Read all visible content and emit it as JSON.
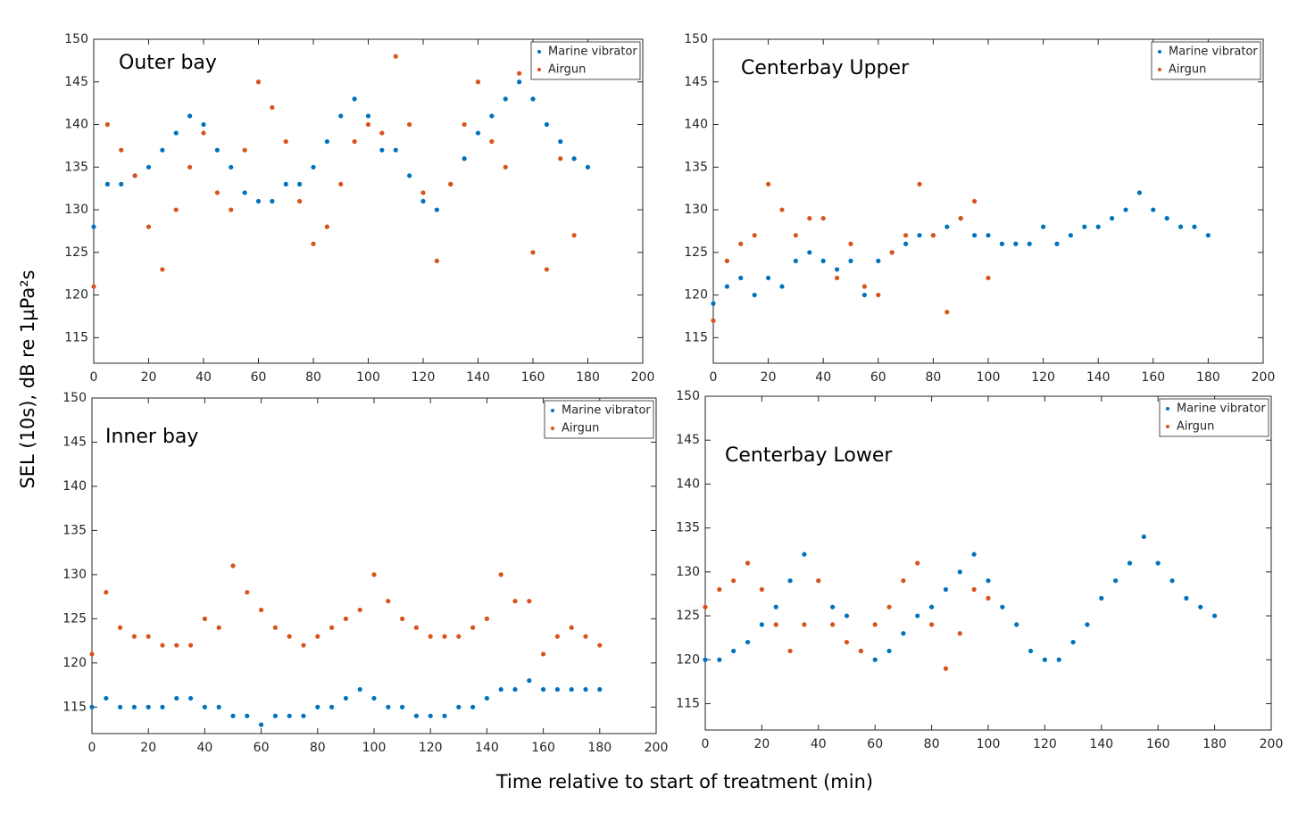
{
  "ylabel": "SEL (10s), dB re 1µPa²s",
  "xlabel": "Time relative to start of treatment (min)",
  "chart_data": [
    {
      "type": "scatter",
      "title": "Outer bay",
      "legend": "top-right",
      "xlim": [
        0,
        200
      ],
      "xticks": [
        0,
        20,
        40,
        60,
        80,
        100,
        120,
        140,
        160,
        180,
        200
      ],
      "ylim": [
        112,
        150
      ],
      "yticks": [
        115,
        120,
        125,
        130,
        135,
        140,
        145,
        150
      ],
      "series": [
        {
          "name": "Marine vibrator",
          "color": "#0072bd",
          "x": [
            0,
            5,
            10,
            15,
            20,
            25,
            30,
            35,
            40,
            45,
            50,
            55,
            60,
            65,
            70,
            75,
            80,
            85,
            90,
            95,
            100,
            105,
            110,
            115,
            120,
            125,
            130,
            135,
            140,
            145,
            150,
            155,
            160,
            165,
            170,
            175,
            180
          ],
          "values": [
            128,
            133,
            133,
            134,
            135,
            137,
            139,
            141,
            140,
            137,
            135,
            132,
            131,
            131,
            133,
            133,
            135,
            138,
            141,
            143,
            141,
            137,
            137,
            134,
            131,
            130,
            133,
            136,
            139,
            141,
            143,
            145,
            143,
            140,
            138,
            136,
            135
          ]
        },
        {
          "name": "Airgun",
          "color": "#d95319",
          "x": [
            0,
            5,
            10,
            15,
            20,
            25,
            30,
            35,
            40,
            45,
            50,
            55,
            60,
            65,
            70,
            75,
            80,
            85,
            90,
            95,
            100,
            105,
            110,
            115,
            120,
            125,
            130,
            135,
            140,
            145,
            150,
            155,
            160,
            165,
            170,
            175
          ],
          "values": [
            121,
            140,
            137,
            134,
            128,
            123,
            130,
            135,
            139,
            132,
            130,
            137,
            145,
            142,
            138,
            131,
            126,
            128,
            133,
            138,
            140,
            139,
            148,
            140,
            132,
            124,
            133,
            140,
            145,
            138,
            135,
            146,
            125,
            123,
            136,
            127
          ]
        }
      ]
    },
    {
      "type": "scatter",
      "title": "Centerbay Upper",
      "legend": "top-right",
      "xlim": [
        0,
        200
      ],
      "xticks": [
        0,
        20,
        40,
        60,
        80,
        100,
        120,
        140,
        160,
        180,
        200
      ],
      "ylim": [
        112,
        150
      ],
      "yticks": [
        115,
        120,
        125,
        130,
        135,
        140,
        145,
        150
      ],
      "series": [
        {
          "name": "Marine vibrator",
          "color": "#0072bd",
          "x": [
            0,
            5,
            10,
            15,
            20,
            25,
            30,
            35,
            40,
            45,
            50,
            55,
            60,
            65,
            70,
            75,
            80,
            85,
            90,
            95,
            100,
            105,
            110,
            115,
            120,
            125,
            130,
            135,
            140,
            145,
            150,
            155,
            160,
            165,
            170,
            175,
            180
          ],
          "values": [
            119,
            121,
            122,
            120,
            122,
            121,
            124,
            125,
            124,
            123,
            124,
            120,
            124,
            125,
            126,
            127,
            127,
            128,
            129,
            127,
            127,
            126,
            126,
            126,
            128,
            126,
            127,
            128,
            128,
            129,
            130,
            132,
            130,
            129,
            128,
            128,
            127
          ]
        },
        {
          "name": "Airgun",
          "color": "#d95319",
          "x": [
            0,
            5,
            10,
            15,
            20,
            25,
            30,
            35,
            40,
            45,
            50,
            55,
            60,
            65,
            70,
            75,
            80,
            85,
            90,
            95,
            100
          ],
          "values": [
            117,
            124,
            126,
            127,
            133,
            130,
            127,
            129,
            129,
            122,
            126,
            121,
            120,
            125,
            127,
            133,
            127,
            118,
            129,
            131,
            122
          ]
        }
      ]
    },
    {
      "type": "scatter",
      "title": "Inner bay",
      "legend": "top-right",
      "xlim": [
        0,
        200
      ],
      "xticks": [
        0,
        20,
        40,
        60,
        80,
        100,
        120,
        140,
        160,
        180,
        200
      ],
      "ylim": [
        112,
        150
      ],
      "yticks": [
        115,
        120,
        125,
        130,
        135,
        140,
        145,
        150
      ],
      "series": [
        {
          "name": "Marine vibrator",
          "color": "#0072bd",
          "x": [
            0,
            5,
            10,
            15,
            20,
            25,
            30,
            35,
            40,
            45,
            50,
            55,
            60,
            65,
            70,
            75,
            80,
            85,
            90,
            95,
            100,
            105,
            110,
            115,
            120,
            125,
            130,
            135,
            140,
            145,
            150,
            155,
            160,
            165,
            170,
            175,
            180
          ],
          "values": [
            115,
            116,
            115,
            115,
            115,
            115,
            116,
            116,
            115,
            115,
            114,
            114,
            113,
            114,
            114,
            114,
            115,
            115,
            116,
            117,
            116,
            115,
            115,
            114,
            114,
            114,
            115,
            115,
            116,
            117,
            117,
            118,
            117,
            117,
            117,
            117,
            117
          ]
        },
        {
          "name": "Airgun",
          "color": "#d95319",
          "x": [
            0,
            5,
            10,
            15,
            20,
            25,
            30,
            35,
            40,
            45,
            50,
            55,
            60,
            65,
            70,
            75,
            80,
            85,
            90,
            95,
            100,
            105,
            110,
            115,
            120,
            125,
            130,
            135,
            140,
            145,
            150,
            155,
            160,
            165,
            170,
            175,
            180
          ],
          "values": [
            121,
            128,
            124,
            123,
            123,
            122,
            122,
            122,
            125,
            124,
            131,
            128,
            126,
            124,
            123,
            122,
            123,
            124,
            125,
            126,
            130,
            127,
            125,
            124,
            123,
            123,
            123,
            124,
            125,
            130,
            127,
            127,
            121,
            123,
            124,
            123,
            122
          ]
        }
      ]
    },
    {
      "type": "scatter",
      "title": "Centerbay Lower",
      "legend": "top-right",
      "xlim": [
        0,
        200
      ],
      "xticks": [
        0,
        20,
        40,
        60,
        80,
        100,
        120,
        140,
        160,
        180,
        200
      ],
      "ylim": [
        112,
        150
      ],
      "yticks": [
        115,
        120,
        125,
        130,
        135,
        140,
        145,
        150
      ],
      "series": [
        {
          "name": "Marine vibrator",
          "color": "#0072bd",
          "x": [
            0,
            5,
            10,
            15,
            20,
            25,
            30,
            35,
            40,
            45,
            50,
            55,
            60,
            65,
            70,
            75,
            80,
            85,
            90,
            95,
            100,
            105,
            110,
            115,
            120,
            125,
            130,
            135,
            140,
            145,
            150,
            155,
            160,
            165,
            170,
            175,
            180
          ],
          "values": [
            120,
            120,
            121,
            122,
            124,
            126,
            129,
            132,
            129,
            126,
            125,
            121,
            120,
            121,
            123,
            125,
            126,
            128,
            130,
            132,
            129,
            126,
            124,
            121,
            120,
            120,
            122,
            124,
            127,
            129,
            131,
            134,
            131,
            129,
            127,
            126,
            125
          ]
        },
        {
          "name": "Airgun",
          "color": "#d95319",
          "x": [
            0,
            5,
            10,
            15,
            20,
            25,
            30,
            35,
            40,
            45,
            50,
            55,
            60,
            65,
            70,
            75,
            80,
            85,
            90,
            95,
            100
          ],
          "values": [
            126,
            128,
            129,
            131,
            128,
            124,
            121,
            124,
            129,
            124,
            122,
            121,
            124,
            126,
            129,
            131,
            124,
            119,
            123,
            128,
            127
          ]
        }
      ]
    }
  ]
}
